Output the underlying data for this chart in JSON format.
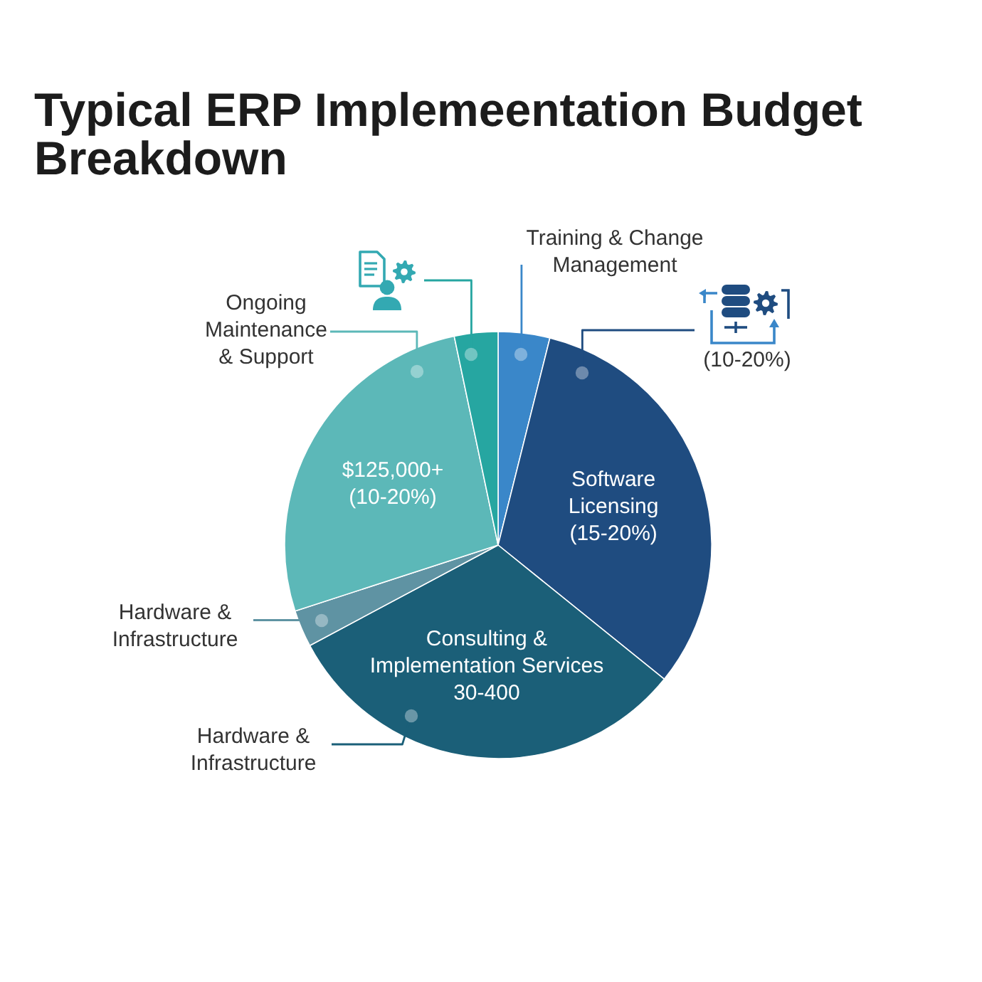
{
  "chart_data": {
    "type": "pie",
    "title": "Typical ERP Implemeentation Budget Breakdown",
    "categories": [
      "Training & Change Management",
      "(10-20%)",
      "Hardware & Infrastructure",
      "Hardware & Infrastructure",
      "Ongoing Maintenance & Support",
      null
    ],
    "values": [
      3.9,
      31.9,
      31.4,
      2.8,
      26.7,
      3.3
    ],
    "colors": [
      "#3a87c9",
      "#1f4c80",
      "#1b5f78",
      "#5f93a3",
      "#5cb8b8",
      "#26a6a1"
    ],
    "annotations": [
      {
        "text": "Software Licensing (15-20%)",
        "x": "(10-20%)"
      },
      {
        "text": "Consulting & Implementation Services 30-400",
        "x": "Hardware & Infrastructure"
      },
      {
        "text": "$125,000+ (10-20%)",
        "x": "Ongoing Maintenance & Support"
      }
    ]
  }
}
